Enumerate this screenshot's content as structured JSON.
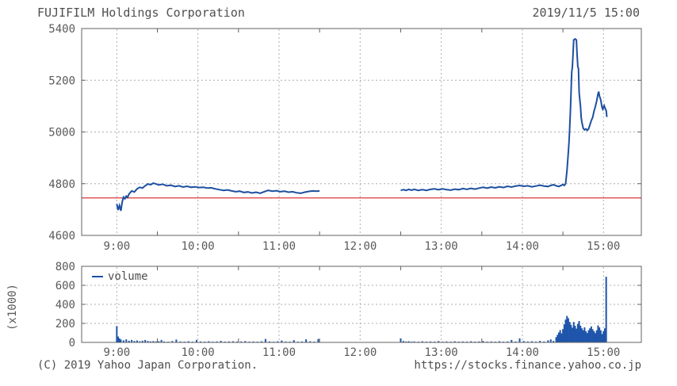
{
  "header": {
    "title": "FUJIFILM Holdings Corporation",
    "datetime": "2019/11/5 15:00"
  },
  "footer": {
    "copyright": "(C) 2019 Yahoo Japan Corporation.",
    "url": "https://stocks.finance.yahoo.co.jp"
  },
  "colors": {
    "price_line": "#1d4fa0",
    "volume_bar": "#1e55ab",
    "prev_close_line": "#e04a4a",
    "grid": "#adadad",
    "border": "#606060",
    "text": "#5a5a5a"
  },
  "time_axis": {
    "labels": [
      "9:00",
      "10:00",
      "11:00",
      "12:00",
      "13:00",
      "14:00",
      "15:00"
    ],
    "t": [
      0,
      60,
      120,
      180,
      240,
      300,
      360
    ],
    "minor_t": [
      30,
      90,
      150,
      210,
      270,
      330
    ]
  },
  "chart_data": [
    {
      "type": "line",
      "name": "price",
      "title": "FUJIFILM Holdings Corporation intraday price 2019/11/5",
      "ylim": [
        4600,
        5400
      ],
      "yticks": [
        4600,
        4800,
        5000,
        5200,
        5400
      ],
      "grid_yticks": [
        4800,
        5000,
        5200
      ],
      "prev_close": 4745,
      "session_gap_minutes": 40,
      "points": [
        [
          0,
          4722
        ],
        [
          1,
          4698
        ],
        [
          2,
          4716
        ],
        [
          3,
          4695
        ],
        [
          4,
          4730
        ],
        [
          5,
          4748
        ],
        [
          6,
          4742
        ],
        [
          7,
          4752
        ],
        [
          8,
          4747
        ],
        [
          9,
          4760
        ],
        [
          11,
          4772
        ],
        [
          13,
          4768
        ],
        [
          15,
          4780
        ],
        [
          17,
          4786
        ],
        [
          19,
          4783
        ],
        [
          21,
          4792
        ],
        [
          23,
          4799
        ],
        [
          25,
          4796
        ],
        [
          27,
          4802
        ],
        [
          29,
          4799
        ],
        [
          31,
          4795
        ],
        [
          34,
          4798
        ],
        [
          37,
          4792
        ],
        [
          40,
          4794
        ],
        [
          43,
          4789
        ],
        [
          46,
          4792
        ],
        [
          49,
          4787
        ],
        [
          52,
          4790
        ],
        [
          55,
          4786
        ],
        [
          58,
          4788
        ],
        [
          61,
          4785
        ],
        [
          64,
          4786
        ],
        [
          67,
          4783
        ],
        [
          70,
          4784
        ],
        [
          73,
          4780
        ],
        [
          76,
          4777
        ],
        [
          79,
          4774
        ],
        [
          82,
          4776
        ],
        [
          85,
          4772
        ],
        [
          88,
          4769
        ],
        [
          91,
          4771
        ],
        [
          94,
          4766
        ],
        [
          97,
          4768
        ],
        [
          100,
          4764
        ],
        [
          103,
          4767
        ],
        [
          106,
          4763
        ],
        [
          109,
          4769
        ],
        [
          112,
          4774
        ],
        [
          115,
          4771
        ],
        [
          118,
          4773
        ],
        [
          121,
          4769
        ],
        [
          124,
          4771
        ],
        [
          127,
          4767
        ],
        [
          130,
          4769
        ],
        [
          133,
          4765
        ],
        [
          136,
          4763
        ],
        [
          139,
          4767
        ],
        [
          142,
          4770
        ],
        [
          145,
          4772
        ],
        [
          148,
          4771
        ],
        [
          150,
          4772
        ],
        [
          210,
          4774
        ],
        [
          212,
          4777
        ],
        [
          214,
          4774
        ],
        [
          216,
          4778
        ],
        [
          218,
          4775
        ],
        [
          220,
          4778
        ],
        [
          223,
          4774
        ],
        [
          226,
          4777
        ],
        [
          229,
          4774
        ],
        [
          232,
          4778
        ],
        [
          235,
          4780
        ],
        [
          238,
          4777
        ],
        [
          241,
          4780
        ],
        [
          244,
          4777
        ],
        [
          247,
          4775
        ],
        [
          250,
          4779
        ],
        [
          253,
          4777
        ],
        [
          256,
          4781
        ],
        [
          259,
          4778
        ],
        [
          262,
          4782
        ],
        [
          265,
          4779
        ],
        [
          268,
          4783
        ],
        [
          271,
          4786
        ],
        [
          274,
          4783
        ],
        [
          277,
          4787
        ],
        [
          280,
          4784
        ],
        [
          283,
          4788
        ],
        [
          286,
          4785
        ],
        [
          289,
          4790
        ],
        [
          292,
          4787
        ],
        [
          295,
          4791
        ],
        [
          298,
          4793
        ],
        [
          301,
          4790
        ],
        [
          304,
          4792
        ],
        [
          307,
          4788
        ],
        [
          310,
          4791
        ],
        [
          313,
          4794
        ],
        [
          316,
          4791
        ],
        [
          319,
          4789
        ],
        [
          321,
          4793
        ],
        [
          323,
          4796
        ],
        [
          325,
          4792
        ],
        [
          327,
          4789
        ],
        [
          329,
          4794
        ],
        [
          330,
          4797
        ],
        [
          331,
          4793
        ],
        [
          332,
          4800
        ],
        [
          333,
          4850
        ],
        [
          334,
          4920
        ],
        [
          334.5,
          4962
        ],
        [
          335,
          5012
        ],
        [
          335.5,
          5078
        ],
        [
          336,
          5148
        ],
        [
          336.5,
          5232
        ],
        [
          337,
          5250
        ],
        [
          337.5,
          5304
        ],
        [
          338,
          5356
        ],
        [
          339,
          5360
        ],
        [
          340,
          5356
        ],
        [
          340.5,
          5298
        ],
        [
          341,
          5252
        ],
        [
          341.5,
          5246
        ],
        [
          342,
          5150
        ],
        [
          343,
          5098
        ],
        [
          343.5,
          5058
        ],
        [
          344,
          5038
        ],
        [
          345,
          5014
        ],
        [
          346,
          5008
        ],
        [
          347,
          5012
        ],
        [
          348,
          5006
        ],
        [
          349,
          5012
        ],
        [
          350,
          5028
        ],
        [
          351,
          5044
        ],
        [
          352,
          5056
        ],
        [
          353,
          5080
        ],
        [
          354,
          5098
        ],
        [
          355,
          5120
        ],
        [
          356,
          5148
        ],
        [
          356.5,
          5156
        ],
        [
          357,
          5140
        ],
        [
          358,
          5124
        ],
        [
          358.5,
          5108
        ],
        [
          359,
          5094
        ],
        [
          359.5,
          5088
        ],
        [
          360,
          5096
        ],
        [
          360.5,
          5102
        ],
        [
          361,
          5094
        ],
        [
          361.5,
          5088
        ],
        [
          362,
          5082
        ],
        [
          362.5,
          5058
        ]
      ]
    },
    {
      "type": "bar",
      "name": "volume",
      "legend": "volume",
      "ylabel": "(x1000)",
      "ylim": [
        0,
        800
      ],
      "yticks": [
        0,
        200,
        400,
        600,
        800
      ],
      "grid_yticks": [
        200,
        400,
        600
      ],
      "points": [
        [
          0,
          172
        ],
        [
          1,
          62
        ],
        [
          2,
          42
        ],
        [
          3,
          30
        ],
        [
          5,
          22
        ],
        [
          7,
          32
        ],
        [
          9,
          18
        ],
        [
          11,
          26
        ],
        [
          13,
          15
        ],
        [
          15,
          21
        ],
        [
          17,
          12
        ],
        [
          19,
          18
        ],
        [
          21,
          26
        ],
        [
          23,
          15
        ],
        [
          25,
          10
        ],
        [
          27,
          14
        ],
        [
          29,
          10
        ],
        [
          31,
          12
        ],
        [
          33,
          26
        ],
        [
          35,
          10
        ],
        [
          38,
          8
        ],
        [
          41,
          14
        ],
        [
          44,
          30
        ],
        [
          47,
          10
        ],
        [
          50,
          8
        ],
        [
          53,
          12
        ],
        [
          56,
          8
        ],
        [
          59,
          26
        ],
        [
          62,
          10
        ],
        [
          65,
          8
        ],
        [
          68,
          12
        ],
        [
          71,
          8
        ],
        [
          74,
          10
        ],
        [
          77,
          16
        ],
        [
          80,
          8
        ],
        [
          83,
          10
        ],
        [
          86,
          12
        ],
        [
          89,
          8
        ],
        [
          92,
          10
        ],
        [
          95,
          14
        ],
        [
          98,
          8
        ],
        [
          101,
          10
        ],
        [
          104,
          8
        ],
        [
          107,
          12
        ],
        [
          110,
          36
        ],
        [
          113,
          10
        ],
        [
          116,
          8
        ],
        [
          119,
          12
        ],
        [
          122,
          20
        ],
        [
          125,
          10
        ],
        [
          128,
          8
        ],
        [
          131,
          24
        ],
        [
          134,
          8
        ],
        [
          137,
          10
        ],
        [
          140,
          32
        ],
        [
          143,
          12
        ],
        [
          146,
          8
        ],
        [
          149,
          36
        ],
        [
          210,
          42
        ],
        [
          212,
          15
        ],
        [
          214,
          10
        ],
        [
          216,
          12
        ],
        [
          218,
          8
        ],
        [
          220,
          10
        ],
        [
          223,
          8
        ],
        [
          226,
          12
        ],
        [
          229,
          8
        ],
        [
          232,
          10
        ],
        [
          235,
          8
        ],
        [
          238,
          14
        ],
        [
          241,
          8
        ],
        [
          244,
          10
        ],
        [
          247,
          8
        ],
        [
          250,
          12
        ],
        [
          253,
          8
        ],
        [
          256,
          10
        ],
        [
          259,
          8
        ],
        [
          262,
          12
        ],
        [
          265,
          8
        ],
        [
          268,
          10
        ],
        [
          271,
          14
        ],
        [
          274,
          8
        ],
        [
          277,
          10
        ],
        [
          280,
          8
        ],
        [
          283,
          12
        ],
        [
          286,
          8
        ],
        [
          289,
          10
        ],
        [
          292,
          26
        ],
        [
          295,
          10
        ],
        [
          298,
          42
        ],
        [
          301,
          15
        ],
        [
          304,
          10
        ],
        [
          307,
          12
        ],
        [
          310,
          8
        ],
        [
          313,
          16
        ],
        [
          316,
          10
        ],
        [
          319,
          22
        ],
        [
          321,
          32
        ],
        [
          323,
          16
        ],
        [
          325,
          55
        ],
        [
          326,
          80
        ],
        [
          327,
          105
        ],
        [
          328,
          130
        ],
        [
          329,
          95
        ],
        [
          330,
          140
        ],
        [
          331,
          190
        ],
        [
          332,
          240
        ],
        [
          333,
          278
        ],
        [
          334,
          255
        ],
        [
          335,
          215
        ],
        [
          336,
          185
        ],
        [
          337,
          155
        ],
        [
          338,
          215
        ],
        [
          339,
          175
        ],
        [
          340,
          145
        ],
        [
          341,
          195
        ],
        [
          342,
          225
        ],
        [
          343,
          175
        ],
        [
          344,
          148
        ],
        [
          345,
          128
        ],
        [
          346,
          158
        ],
        [
          347,
          118
        ],
        [
          348,
          98
        ],
        [
          349,
          128
        ],
        [
          350,
          148
        ],
        [
          351,
          168
        ],
        [
          352,
          138
        ],
        [
          353,
          118
        ],
        [
          354,
          98
        ],
        [
          355,
          128
        ],
        [
          356,
          178
        ],
        [
          357,
          158
        ],
        [
          358,
          128
        ],
        [
          359,
          88
        ],
        [
          360,
          118
        ],
        [
          361,
          148
        ],
        [
          362,
          690
        ]
      ]
    }
  ]
}
